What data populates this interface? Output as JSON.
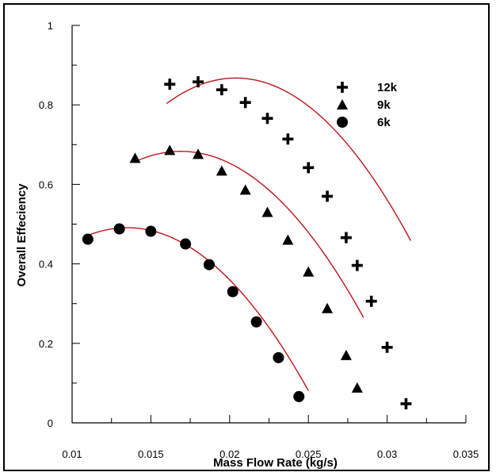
{
  "chart_data": {
    "type": "scatter",
    "title": "",
    "xlabel": "Mass Flow Rate (kg/s)",
    "ylabel": "Overall Effeciency",
    "xlim": [
      0.01,
      0.035
    ],
    "ylim": [
      0,
      1
    ],
    "xticks": [
      0.01,
      0.015,
      0.02,
      0.025,
      0.03,
      0.035
    ],
    "xtick_labels": [
      "0.01",
      "0.015",
      "0.02",
      "0.025",
      "0.03",
      "0.035"
    ],
    "yticks": [
      0,
      0.2,
      0.4,
      0.6,
      0.8,
      1
    ],
    "ytick_labels": [
      "0",
      "0.2",
      "0.4",
      "0.6",
      "0.8",
      "1"
    ],
    "grid": false,
    "legend_position": "top-right",
    "fit_line_color": "#c0141b",
    "series": [
      {
        "name": "12k",
        "marker": "plus",
        "x": [
          0.0162,
          0.018,
          0.0195,
          0.021,
          0.0224,
          0.0237,
          0.025,
          0.0262,
          0.0274,
          0.0281,
          0.029,
          0.03,
          0.0312
        ],
        "y": [
          0.852,
          0.858,
          0.838,
          0.806,
          0.766,
          0.714,
          0.642,
          0.57,
          0.466,
          0.396,
          0.306,
          0.19,
          0.048
        ],
        "fit": {
          "coefficients": [
            -3320,
            135.43,
            -0.5136
          ],
          "x_range": [
            0.016,
            0.0315
          ]
        }
      },
      {
        "name": "9k",
        "marker": "triangle",
        "x": [
          0.014,
          0.0162,
          0.018,
          0.0195,
          0.021,
          0.0224,
          0.0237,
          0.025,
          0.0262,
          0.0274,
          0.0281
        ],
        "y": [
          0.666,
          0.686,
          0.676,
          0.634,
          0.586,
          0.53,
          0.46,
          0.38,
          0.288,
          0.17,
          0.088
        ],
        "fit": {
          "coefficients": [
            -3106,
            104.96,
            -0.2036
          ],
          "x_range": [
            0.014,
            0.0285
          ]
        }
      },
      {
        "name": "6k",
        "marker": "circle",
        "x": [
          0.011,
          0.013,
          0.015,
          0.0172,
          0.0187,
          0.0202,
          0.0217,
          0.0231,
          0.0244
        ],
        "y": [
          0.462,
          0.488,
          0.482,
          0.45,
          0.398,
          0.33,
          0.254,
          0.164,
          0.066
        ],
        "fit": {
          "coefficients": [
            -3100,
            83.7,
            -0.074
          ],
          "x_range": [
            0.011,
            0.025
          ]
        }
      }
    ]
  }
}
